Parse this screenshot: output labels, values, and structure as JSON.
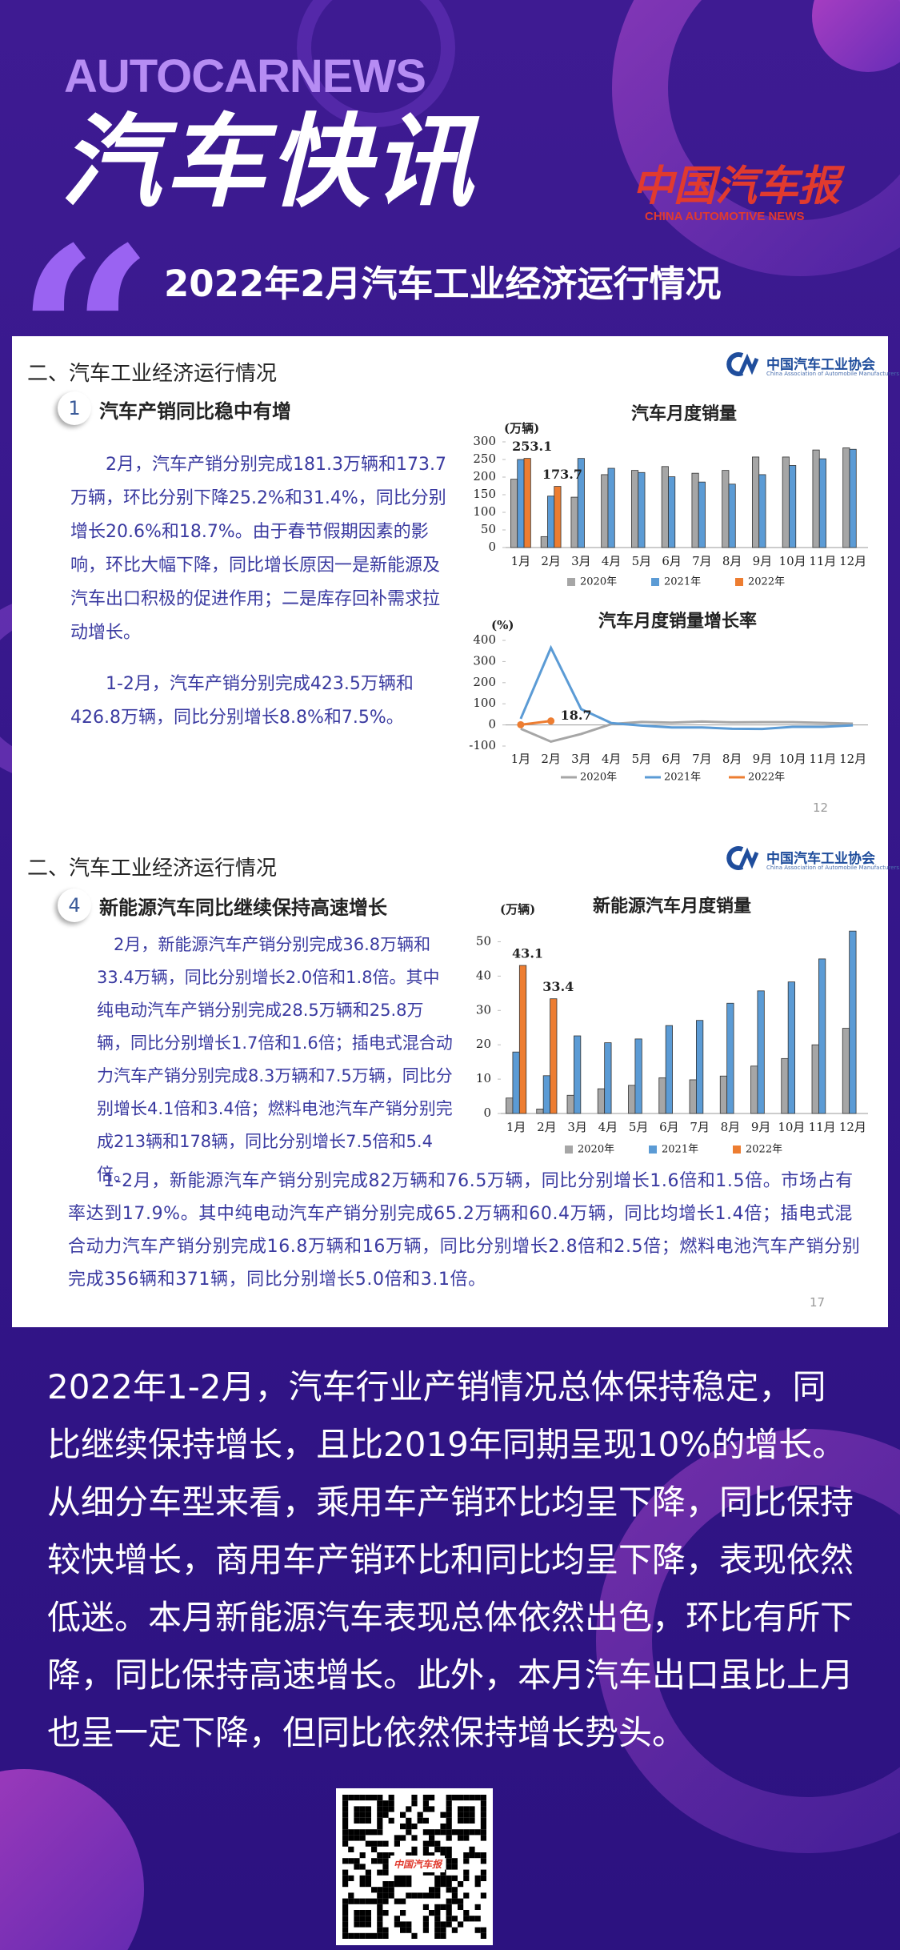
{
  "header": {
    "brand": "AUTOCARNEWS",
    "title": "汽车快讯",
    "subtitle": "2022年2月汽车工业经济运行情况",
    "logo": {
      "name": "中国汽车报",
      "english": "CHINA AUTOMOTIVE NEWS"
    }
  },
  "slides": [
    {
      "section": "二、汽车工业经济运行情况",
      "number": "1",
      "heading": "汽车产销同比稳中有增",
      "org": "中国汽车工业协会",
      "org_en": "China Association of Automobile Manufacturers",
      "paragraphs": [
        "2月，汽车产销分别完成181.3万辆和173.7万辆，环比分别下降25.2%和31.4%，同比分别增长20.6%和18.7%。由于春节假期因素的影响，环比大幅下降，同比增长原因一是新能源及汽车出口积极的促进作用；二是库存回补需求拉动增长。",
        "1-2月，汽车产销分别完成423.5万辆和426.8万辆，同比分别增长8.8%和7.5%。"
      ],
      "page": "12",
      "charts": [
        {
          "type": "bar",
          "title": "汽车月度销量",
          "unit": "(万辆)",
          "categories": [
            "1月",
            "2月",
            "3月",
            "4月",
            "5月",
            "6月",
            "7月",
            "8月",
            "9月",
            "10月",
            "11月",
            "12月"
          ],
          "series": [
            {
              "name": "2020年",
              "color": "#a6a6a6",
              "values": [
                194,
                31,
                143,
                207,
                219,
                230,
                211,
                219,
                257,
                257,
                277,
                283
              ]
            },
            {
              "name": "2021年",
              "color": "#5b9bd5",
              "values": [
                250,
                146,
                253,
                225,
                213,
                201,
                186,
                180,
                207,
                233,
                252,
                279
              ]
            },
            {
              "name": "2022年",
              "color": "#ed7d31",
              "values": [
                253.1,
                173.7,
                null,
                null,
                null,
                null,
                null,
                null,
                null,
                null,
                null,
                null
              ],
              "value_labels": [
                "253.1",
                "173.7",
                null,
                null,
                null,
                null,
                null,
                null,
                null,
                null,
                null,
                null
              ]
            }
          ],
          "ylim": [
            0,
            300
          ],
          "yticks": [
            0,
            50,
            100,
            150,
            200,
            250,
            300
          ],
          "legend": "bottom"
        },
        {
          "type": "line",
          "title": "汽车月度销量增长率",
          "unit": "(%)",
          "categories": [
            "1月",
            "2月",
            "3月",
            "4月",
            "5月",
            "6月",
            "7月",
            "8月",
            "9月",
            "10月",
            "11月",
            "12月"
          ],
          "series": [
            {
              "name": "2020年",
              "color": "#a6a6a6",
              "values": [
                -18,
                -79,
                -43,
                4,
                14,
                11,
                16,
                12,
                13,
                13,
                10,
                6
              ]
            },
            {
              "name": "2021年",
              "color": "#5b9bd5",
              "values": [
                29,
                365,
                75,
                9,
                -3,
                -12,
                -12,
                -18,
                -19,
                -9,
                -9,
                -2
              ]
            },
            {
              "name": "2022年",
              "color": "#ed7d31",
              "markers": true,
              "values": [
                1,
                18.7,
                null,
                null,
                null,
                null,
                null,
                null,
                null,
                null,
                null,
                null
              ],
              "value_labels": [
                null,
                "18.7",
                null,
                null,
                null,
                null,
                null,
                null,
                null,
                null,
                null,
                null
              ]
            }
          ],
          "ylim": [
            -100,
            400
          ],
          "yticks": [
            -100,
            0,
            100,
            200,
            300,
            400
          ],
          "legend": "bottom"
        }
      ]
    },
    {
      "section": "二、汽车工业经济运行情况",
      "number": "4",
      "heading": "新能源汽车同比继续保持高速增长",
      "org": "中国汽车工业协会",
      "org_en": "China Association of Automobile Manufacturers",
      "paragraphs": [
        "2月，新能源汽车产销分别完成36.8万辆和33.4万辆，同比分别增长2.0倍和1.8倍。其中纯电动汽车产销分别完成28.5万辆和25.8万辆，同比分别增长1.7倍和1.6倍；插电式混合动力汽车产销分别完成8.3万辆和7.5万辆，同比分别增长4.1倍和3.4倍；燃料电池汽车产销分别完成213辆和178辆，同比分别增长7.5倍和5.4倍。",
        "1-2月，新能源汽车产销分别完成82万辆和76.5万辆，同比分别增长1.6倍和1.5倍。市场占有率达到17.9%。其中纯电动汽车产销分别完成65.2万辆和60.4万辆，同比均增长1.4倍；插电式混合动力汽车产销分别完成16.8万辆和16万辆，同比分别增长2.8倍和2.5倍；燃料电池汽车产销分别完成356辆和371辆，同比分别增长5.0倍和3.1倍。"
      ],
      "page": "17",
      "charts": [
        {
          "type": "bar",
          "title": "新能源汽车月度销量",
          "unit": "(万辆)",
          "categories": [
            "1月",
            "2月",
            "3月",
            "4月",
            "5月",
            "6月",
            "7月",
            "8月",
            "9月",
            "10月",
            "11月",
            "12月"
          ],
          "series": [
            {
              "name": "2020年",
              "color": "#a6a6a6",
              "values": [
                4.5,
                1.3,
                5.3,
                7.2,
                8.2,
                10.4,
                9.8,
                10.9,
                13.8,
                16,
                20,
                24.8
              ]
            },
            {
              "name": "2021年",
              "color": "#5b9bd5",
              "values": [
                17.9,
                11,
                22.6,
                20.6,
                21.7,
                25.6,
                27.1,
                32.1,
                35.7,
                38.3,
                45,
                53.1
              ]
            },
            {
              "name": "2022年",
              "color": "#ed7d31",
              "values": [
                43.1,
                33.4,
                null,
                null,
                null,
                null,
                null,
                null,
                null,
                null,
                null,
                null
              ],
              "value_labels": [
                "43.1",
                "33.4",
                null,
                null,
                null,
                null,
                null,
                null,
                null,
                null,
                null,
                null
              ]
            }
          ],
          "ylim": [
            0,
            55
          ],
          "yticks": [
            0,
            10,
            20,
            30,
            40,
            50
          ],
          "legend": "bottom"
        }
      ]
    }
  ],
  "summary": "2022年1-2月，汽车行业产销情况总体保持稳定，同比继续保持增长，且比2019年同期呈现10%的增长。从细分车型来看，乘用车产销环比均呈下降，同比保持较快增长，商用车产销环比和同比均呈下降，表现依然低迷。本月新能源汽车表现总体依然出色，环比有所下降，同比保持高速增长。此外，本月汽车出口虽比上月也呈一定下降，但同比依然保持增长势头。",
  "qr": {
    "label": "中国汽车报"
  }
}
